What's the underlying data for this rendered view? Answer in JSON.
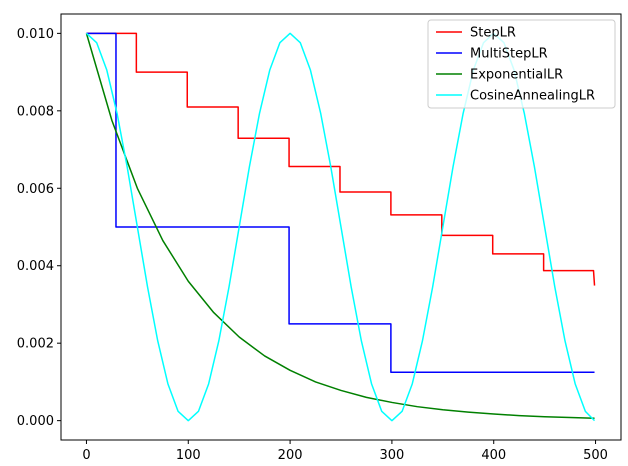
{
  "chart_data": {
    "type": "line",
    "xlim": [
      -25,
      525
    ],
    "ylim": [
      -0.0005,
      0.0105
    ],
    "x_ticks": [
      0,
      100,
      200,
      300,
      400,
      500
    ],
    "x_tick_labels": [
      "0",
      "100",
      "200",
      "300",
      "400",
      "500"
    ],
    "y_ticks": [
      0.0,
      0.002,
      0.004,
      0.006,
      0.008,
      0.01
    ],
    "y_tick_labels": [
      "0.000",
      "0.002",
      "0.004",
      "0.006",
      "0.008",
      "0.010"
    ],
    "legend_position": "top-right",
    "grid": false,
    "series": [
      {
        "name": "StepLR",
        "color": "#ff0000",
        "x": [
          0,
          49,
          49,
          99,
          99,
          149,
          149,
          199,
          199,
          249,
          249,
          299,
          299,
          349,
          349,
          399,
          399,
          449,
          449,
          498,
          499
        ],
        "y": [
          0.01,
          0.01,
          0.009,
          0.009,
          0.0081,
          0.0081,
          0.00729,
          0.00729,
          0.006561,
          0.006561,
          0.0059049,
          0.0059049,
          0.00531441,
          0.00531441,
          0.004782969,
          0.004782969,
          0.004304672,
          0.004304672,
          0.003874205,
          0.003874205,
          0.003486784
        ]
      },
      {
        "name": "MultiStepLR",
        "color": "#0000ff",
        "x": [
          0,
          29,
          29,
          199,
          199,
          299,
          299,
          499
        ],
        "y": [
          0.01,
          0.01,
          0.005,
          0.005,
          0.0025,
          0.0025,
          0.00125,
          0.00125
        ]
      },
      {
        "name": "ExponentialLR",
        "color": "#008000",
        "x": [
          0,
          25,
          50,
          75,
          100,
          125,
          150,
          175,
          200,
          225,
          250,
          275,
          300,
          325,
          350,
          375,
          400,
          425,
          450,
          475,
          499
        ],
        "y": [
          0.01,
          0.00775,
          0.006,
          0.00465,
          0.0036,
          0.00279,
          0.00216,
          0.00167,
          0.0013,
          0.001,
          0.00078,
          0.0006,
          0.00047,
          0.00036,
          0.00028,
          0.00022,
          0.00017,
          0.00013,
          0.0001,
          8e-05,
          6e-05
        ]
      },
      {
        "name": "CosineAnnealingLR",
        "color": "#00ffff",
        "x": [
          0,
          10,
          20,
          30,
          40,
          50,
          60,
          70,
          80,
          90,
          100,
          110,
          120,
          130,
          140,
          150,
          160,
          170,
          180,
          190,
          200,
          210,
          220,
          230,
          240,
          250,
          260,
          270,
          280,
          290,
          300,
          310,
          320,
          330,
          340,
          350,
          360,
          370,
          380,
          390,
          400,
          410,
          420,
          430,
          440,
          450,
          460,
          470,
          480,
          490,
          499
        ],
        "y": [
          0.01,
          0.00976,
          0.00905,
          0.00794,
          0.00655,
          0.005,
          0.00345,
          0.00206,
          0.00095,
          0.00024,
          0.0,
          0.00024,
          0.00095,
          0.00206,
          0.00345,
          0.005,
          0.00655,
          0.00794,
          0.00905,
          0.00976,
          0.01,
          0.00976,
          0.00905,
          0.00794,
          0.00655,
          0.005,
          0.00345,
          0.00206,
          0.00095,
          0.00024,
          0.0,
          0.00024,
          0.00095,
          0.00206,
          0.00345,
          0.005,
          0.00655,
          0.00794,
          0.00905,
          0.00976,
          0.01,
          0.00976,
          0.00905,
          0.00794,
          0.00655,
          0.005,
          0.00345,
          0.00206,
          0.00095,
          0.00024,
          0.0
        ]
      }
    ]
  }
}
